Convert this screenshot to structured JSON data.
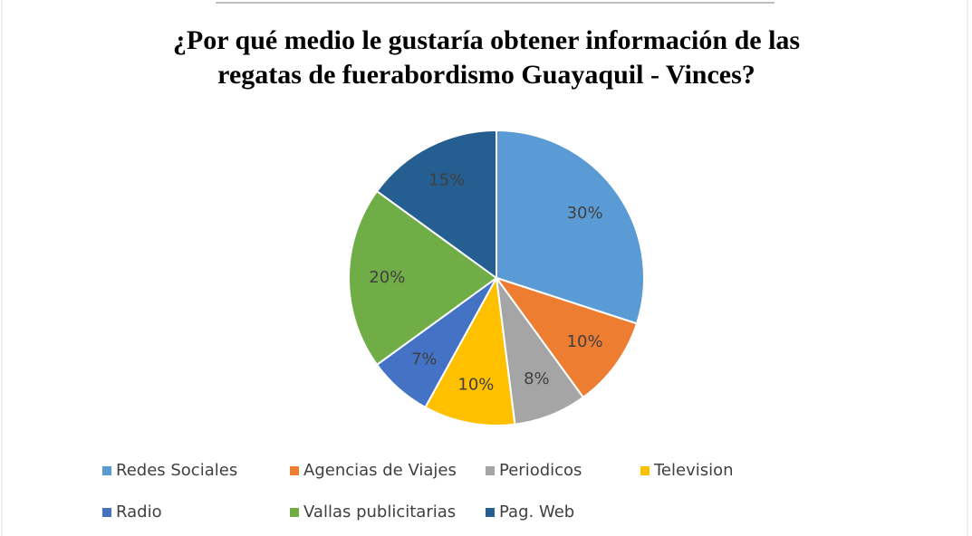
{
  "chart_data": {
    "type": "pie",
    "title": "¿Por qué medio le gustaría obtener información de las regatas de fuerabordismo Guayaquil - Vinces?",
    "categories": [
      "Redes Sociales",
      "Agencias de Viajes",
      "Periodicos",
      "Television",
      "Radio",
      "Vallas publicitarias",
      "Pag. Web"
    ],
    "values": [
      30,
      10,
      8,
      10,
      7,
      20,
      15
    ],
    "value_labels": [
      "30%",
      "10%",
      "8%",
      "10%",
      "7%",
      "20%",
      "15%"
    ],
    "colors": [
      "#5b9bd5",
      "#ed7d31",
      "#a5a5a5",
      "#ffc000",
      "#4472c4",
      "#70ad47",
      "#255e91"
    ],
    "legend": "bottom"
  }
}
